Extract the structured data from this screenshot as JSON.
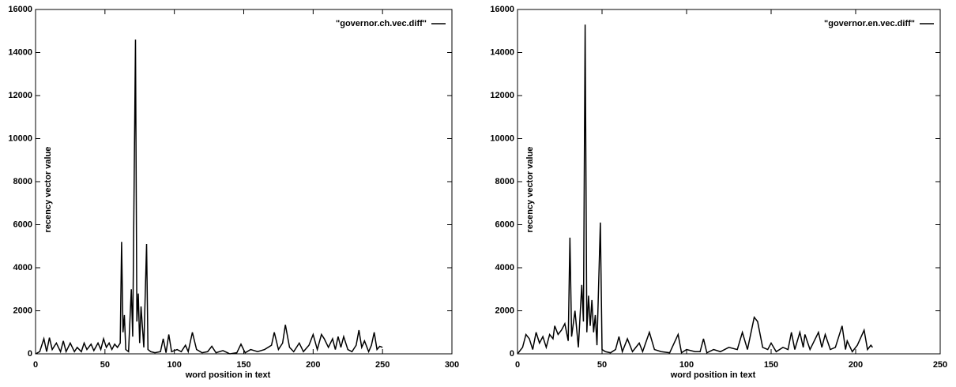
{
  "chart_data": [
    {
      "type": "line",
      "xlabel": "word position in text",
      "ylabel": "recency vector value",
      "xlim": [
        0,
        300
      ],
      "ylim": [
        0,
        16000
      ],
      "xticks": [
        0,
        50,
        100,
        150,
        200,
        250,
        300
      ],
      "yticks": [
        0,
        2000,
        4000,
        6000,
        8000,
        10000,
        12000,
        14000,
        16000
      ],
      "legend": "top-right",
      "x": [
        0,
        3,
        6,
        8,
        10,
        12,
        15,
        18,
        20,
        22,
        25,
        28,
        30,
        33,
        35,
        37,
        40,
        42,
        45,
        47,
        49,
        51,
        53,
        55,
        57,
        59,
        61,
        62,
        63,
        64,
        65,
        67,
        69,
        70,
        72,
        73,
        74,
        75,
        76,
        78,
        80,
        81,
        83,
        86,
        90,
        92,
        94,
        96,
        98,
        102,
        105,
        108,
        110,
        113,
        116,
        120,
        124,
        127,
        130,
        135,
        140,
        145,
        148,
        151,
        155,
        160,
        165,
        170,
        172,
        175,
        178,
        180,
        183,
        186,
        190,
        193,
        197,
        200,
        203,
        206,
        208,
        211,
        214,
        216,
        218,
        220,
        222,
        225,
        228,
        231,
        233,
        235,
        237,
        240,
        242,
        244,
        246,
        248,
        250
      ],
      "series": [
        {
          "name": "\"governor.ch.vec.diff\"",
          "color": "#000000",
          "values": [
            0,
            100,
            700,
            100,
            750,
            200,
            500,
            100,
            600,
            100,
            500,
            100,
            300,
            100,
            500,
            200,
            450,
            150,
            500,
            200,
            700,
            300,
            500,
            200,
            450,
            300,
            500,
            5200,
            1000,
            1800,
            200,
            100,
            3000,
            800,
            14600,
            1500,
            2800,
            500,
            2200,
            300,
            5100,
            200,
            100,
            50,
            100,
            700,
            50,
            900,
            100,
            200,
            100,
            400,
            100,
            1000,
            200,
            50,
            100,
            350,
            50,
            150,
            0,
            50,
            450,
            50,
            200,
            100,
            200,
            400,
            1000,
            200,
            500,
            1350,
            300,
            100,
            500,
            100,
            400,
            900,
            200,
            900,
            700,
            300,
            700,
            200,
            800,
            300,
            800,
            200,
            100,
            400,
            1100,
            300,
            600,
            100,
            400,
            1000,
            200,
            350,
            300
          ]
        }
      ]
    },
    {
      "type": "line",
      "xlabel": "word position in text",
      "ylabel": "recency vector value",
      "xlim": [
        0,
        250
      ],
      "ylim": [
        0,
        16000
      ],
      "xticks": [
        0,
        50,
        100,
        150,
        200,
        250
      ],
      "yticks": [
        0,
        2000,
        4000,
        6000,
        8000,
        10000,
        12000,
        14000,
        16000
      ],
      "legend": "top-right",
      "x": [
        0,
        3,
        5,
        7,
        9,
        11,
        13,
        15,
        17,
        19,
        21,
        22,
        24,
        26,
        28,
        30,
        31,
        32,
        34,
        36,
        38,
        39,
        40,
        41,
        42,
        43,
        44,
        45,
        46,
        47,
        49,
        50,
        52,
        55,
        58,
        60,
        62,
        65,
        68,
        72,
        74,
        78,
        81,
        85,
        90,
        95,
        97,
        100,
        105,
        108,
        110,
        112,
        116,
        120,
        125,
        130,
        133,
        136,
        140,
        142,
        145,
        148,
        150,
        153,
        157,
        160,
        162,
        164,
        167,
        169,
        170,
        173,
        178,
        180,
        182,
        185,
        188,
        192,
        194,
        195,
        198,
        201,
        205,
        207,
        209,
        210
      ],
      "series": [
        {
          "name": "\"governor.en.vec.diff\"",
          "color": "#000000",
          "values": [
            0,
            300,
            900,
            700,
            200,
            1000,
            500,
            800,
            300,
            900,
            700,
            1300,
            900,
            1100,
            1400,
            600,
            5400,
            800,
            2000,
            300,
            3200,
            1500,
            15300,
            1000,
            2700,
            1300,
            2500,
            1000,
            1800,
            400,
            6100,
            200,
            100,
            50,
            200,
            800,
            100,
            700,
            100,
            500,
            100,
            1000,
            200,
            100,
            50,
            900,
            50,
            200,
            100,
            100,
            700,
            50,
            200,
            100,
            300,
            200,
            1000,
            200,
            1700,
            1500,
            300,
            200,
            500,
            100,
            300,
            200,
            1000,
            200,
            1000,
            300,
            900,
            200,
            1000,
            300,
            900,
            200,
            300,
            1300,
            200,
            600,
            100,
            400,
            1100,
            200,
            400,
            300
          ]
        }
      ]
    }
  ]
}
